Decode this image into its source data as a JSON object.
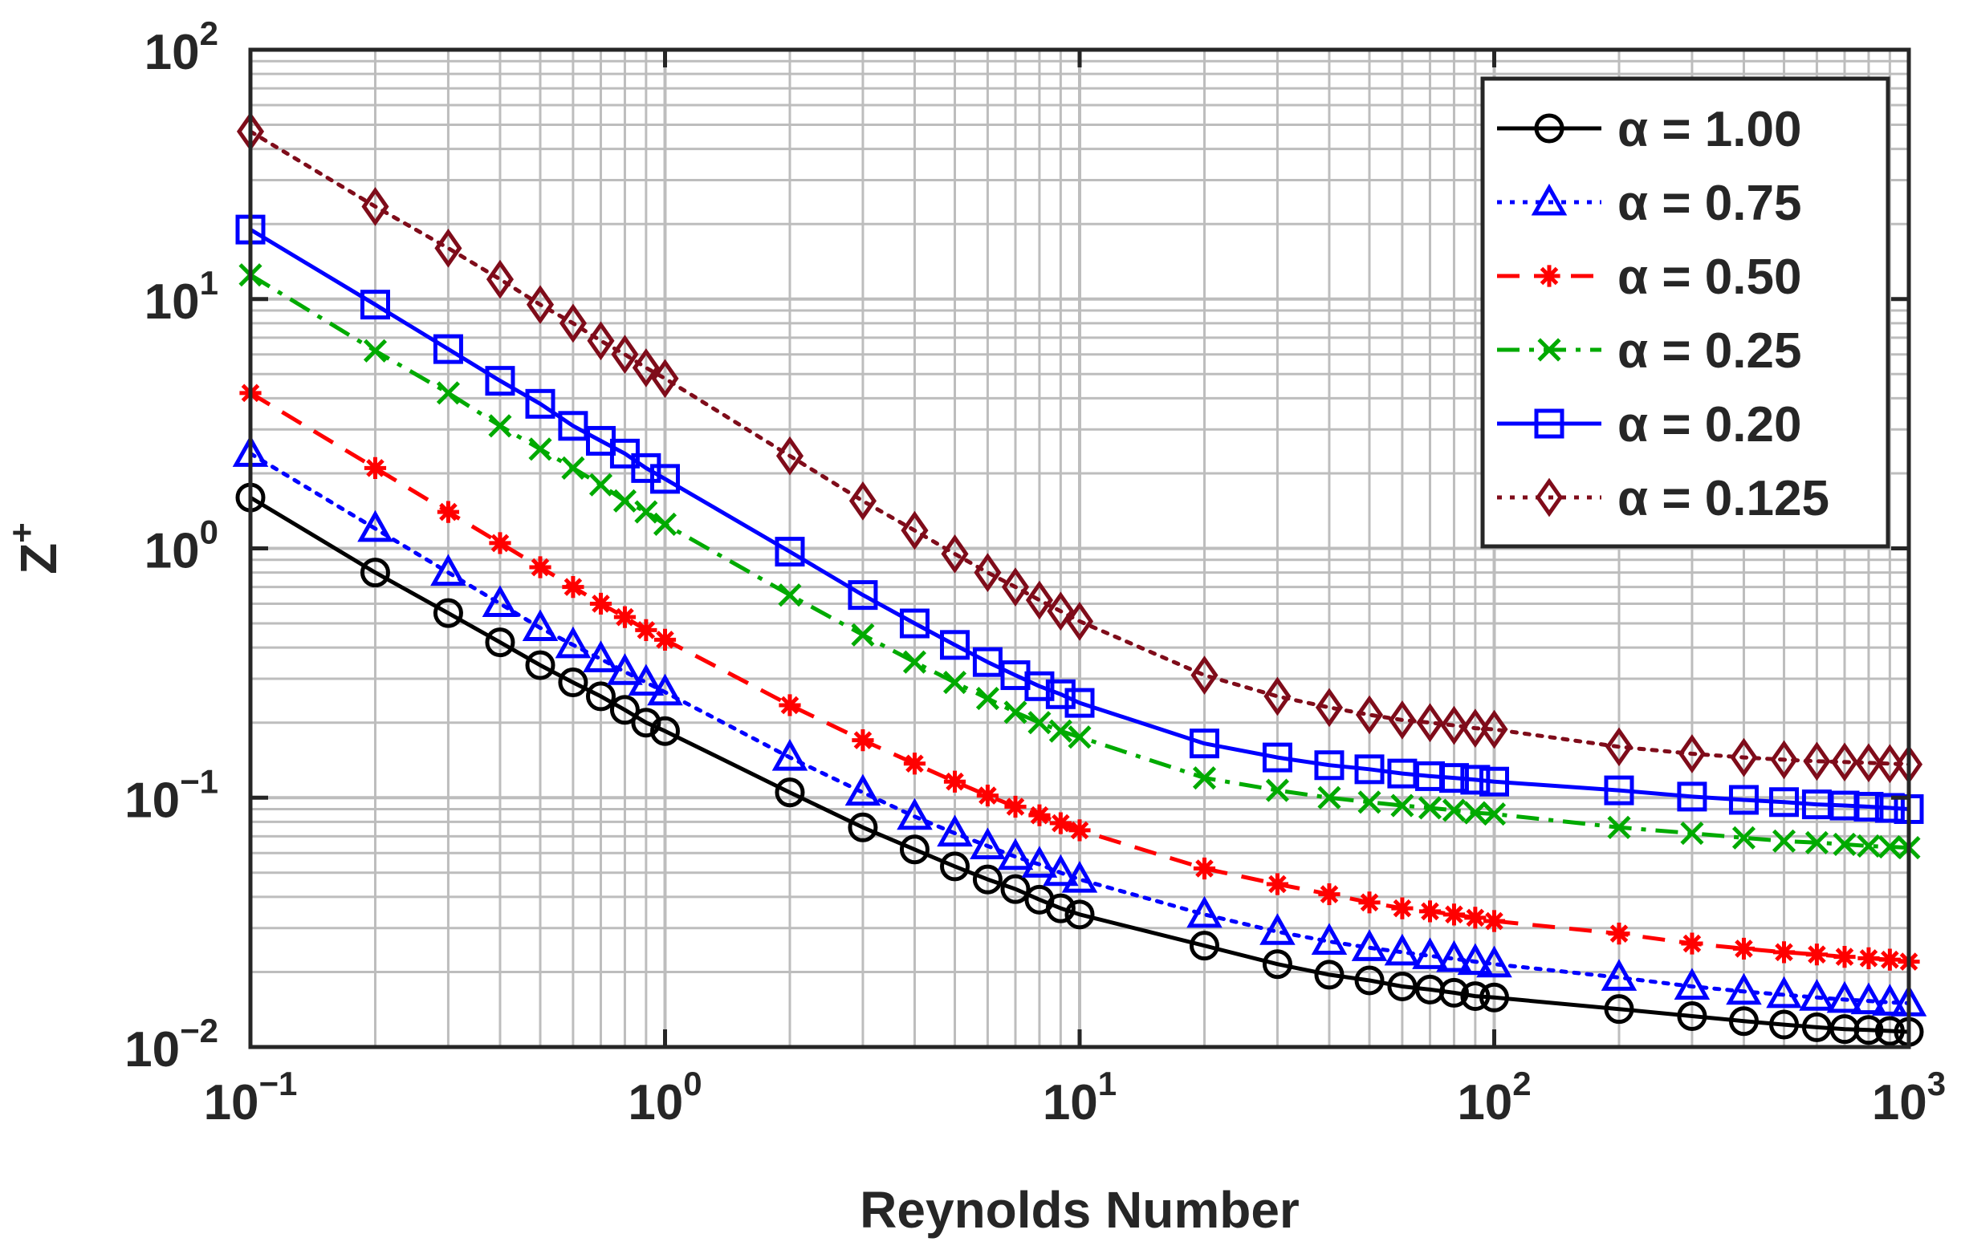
{
  "chart_data": {
    "type": "line",
    "xscale": "log",
    "yscale": "log",
    "xlim": [
      0.1,
      1000
    ],
    "ylim": [
      0.01,
      100
    ],
    "xlabel": "Reynolds Number",
    "ylabel": {
      "base": "Z",
      "sup": "+"
    },
    "grid": true,
    "minor_grid": true,
    "legend_position": "top-right",
    "x_ticks": [
      {
        "value": 0.1,
        "base": "10",
        "exp": "−1"
      },
      {
        "value": 1,
        "base": "10",
        "exp": "0"
      },
      {
        "value": 10,
        "base": "10",
        "exp": "1"
      },
      {
        "value": 100,
        "base": "10",
        "exp": "2"
      },
      {
        "value": 1000,
        "base": "10",
        "exp": "3"
      }
    ],
    "y_ticks": [
      {
        "value": 0.01,
        "base": "10",
        "exp": "−2"
      },
      {
        "value": 0.1,
        "base": "10",
        "exp": "−1"
      },
      {
        "value": 1,
        "base": "10",
        "exp": "0"
      },
      {
        "value": 10,
        "base": "10",
        "exp": "1"
      },
      {
        "value": 100,
        "base": "10",
        "exp": "2"
      }
    ],
    "x": [
      0.1,
      0.2,
      0.3,
      0.4,
      0.5,
      0.6,
      0.7,
      0.8,
      0.9,
      1,
      2,
      3,
      4,
      5,
      6,
      7,
      8,
      9,
      10,
      20,
      30,
      40,
      50,
      60,
      70,
      80,
      90,
      100,
      200,
      300,
      400,
      500,
      600,
      700,
      800,
      900,
      1000
    ],
    "series": [
      {
        "name": "α = 1.00",
        "color": "#000000",
        "line_style": "solid",
        "marker": "circle",
        "values": [
          1.6,
          0.8,
          0.55,
          0.42,
          0.34,
          0.29,
          0.255,
          0.225,
          0.2,
          0.185,
          0.105,
          0.076,
          0.062,
          0.053,
          0.047,
          0.043,
          0.039,
          0.036,
          0.034,
          0.0255,
          0.0215,
          0.0195,
          0.0185,
          0.0175,
          0.017,
          0.0165,
          0.016,
          0.0158,
          0.0142,
          0.0133,
          0.0127,
          0.0123,
          0.012,
          0.0118,
          0.0117,
          0.0116,
          0.0115
        ]
      },
      {
        "name": "α = 0.75",
        "color": "#0000ff",
        "line_style": "dotted",
        "marker": "triangle",
        "values": [
          2.4,
          1.2,
          0.8,
          0.6,
          0.48,
          0.41,
          0.36,
          0.32,
          0.29,
          0.265,
          0.145,
          0.105,
          0.084,
          0.072,
          0.064,
          0.058,
          0.054,
          0.05,
          0.047,
          0.034,
          0.029,
          0.0265,
          0.025,
          0.024,
          0.0232,
          0.0226,
          0.022,
          0.0215,
          0.019,
          0.0175,
          0.0167,
          0.0162,
          0.0158,
          0.0155,
          0.0153,
          0.0151,
          0.015
        ]
      },
      {
        "name": "α = 0.50",
        "color": "#ff0000",
        "line_style": "dashed",
        "marker": "asterisk",
        "values": [
          4.2,
          2.1,
          1.4,
          1.05,
          0.84,
          0.7,
          0.6,
          0.53,
          0.47,
          0.43,
          0.235,
          0.17,
          0.137,
          0.116,
          0.102,
          0.092,
          0.085,
          0.079,
          0.074,
          0.052,
          0.045,
          0.041,
          0.038,
          0.036,
          0.035,
          0.034,
          0.033,
          0.032,
          0.0285,
          0.026,
          0.0248,
          0.024,
          0.0235,
          0.023,
          0.0227,
          0.0224,
          0.022
        ]
      },
      {
        "name": "α = 0.25",
        "color": "#00aa00",
        "line_style": "dashdot",
        "marker": "x",
        "values": [
          12.5,
          6.2,
          4.2,
          3.1,
          2.5,
          2.1,
          1.8,
          1.55,
          1.4,
          1.25,
          0.65,
          0.45,
          0.35,
          0.29,
          0.25,
          0.22,
          0.2,
          0.185,
          0.175,
          0.12,
          0.107,
          0.1,
          0.096,
          0.093,
          0.091,
          0.089,
          0.087,
          0.086,
          0.076,
          0.072,
          0.069,
          0.067,
          0.066,
          0.065,
          0.064,
          0.0635,
          0.063
        ]
      },
      {
        "name": "α = 0.20",
        "color": "#0000ff",
        "line_style": "solid",
        "marker": "square",
        "values": [
          19,
          9.5,
          6.3,
          4.7,
          3.8,
          3.1,
          2.7,
          2.4,
          2.1,
          1.9,
          0.97,
          0.65,
          0.5,
          0.41,
          0.35,
          0.31,
          0.28,
          0.26,
          0.24,
          0.165,
          0.145,
          0.135,
          0.13,
          0.125,
          0.122,
          0.12,
          0.118,
          0.116,
          0.107,
          0.101,
          0.098,
          0.096,
          0.094,
          0.093,
          0.092,
          0.091,
          0.09
        ]
      },
      {
        "name": "α = 0.125",
        "color": "#7f0c1a",
        "line_style": "dotted",
        "marker": "diamond",
        "values": [
          47,
          23.5,
          16,
          12,
          9.5,
          8,
          6.8,
          6,
          5.3,
          4.8,
          2.35,
          1.55,
          1.18,
          0.95,
          0.8,
          0.7,
          0.62,
          0.56,
          0.51,
          0.31,
          0.255,
          0.23,
          0.215,
          0.205,
          0.2,
          0.195,
          0.19,
          0.188,
          0.16,
          0.15,
          0.145,
          0.142,
          0.14,
          0.139,
          0.138,
          0.137,
          0.136
        ]
      }
    ]
  }
}
